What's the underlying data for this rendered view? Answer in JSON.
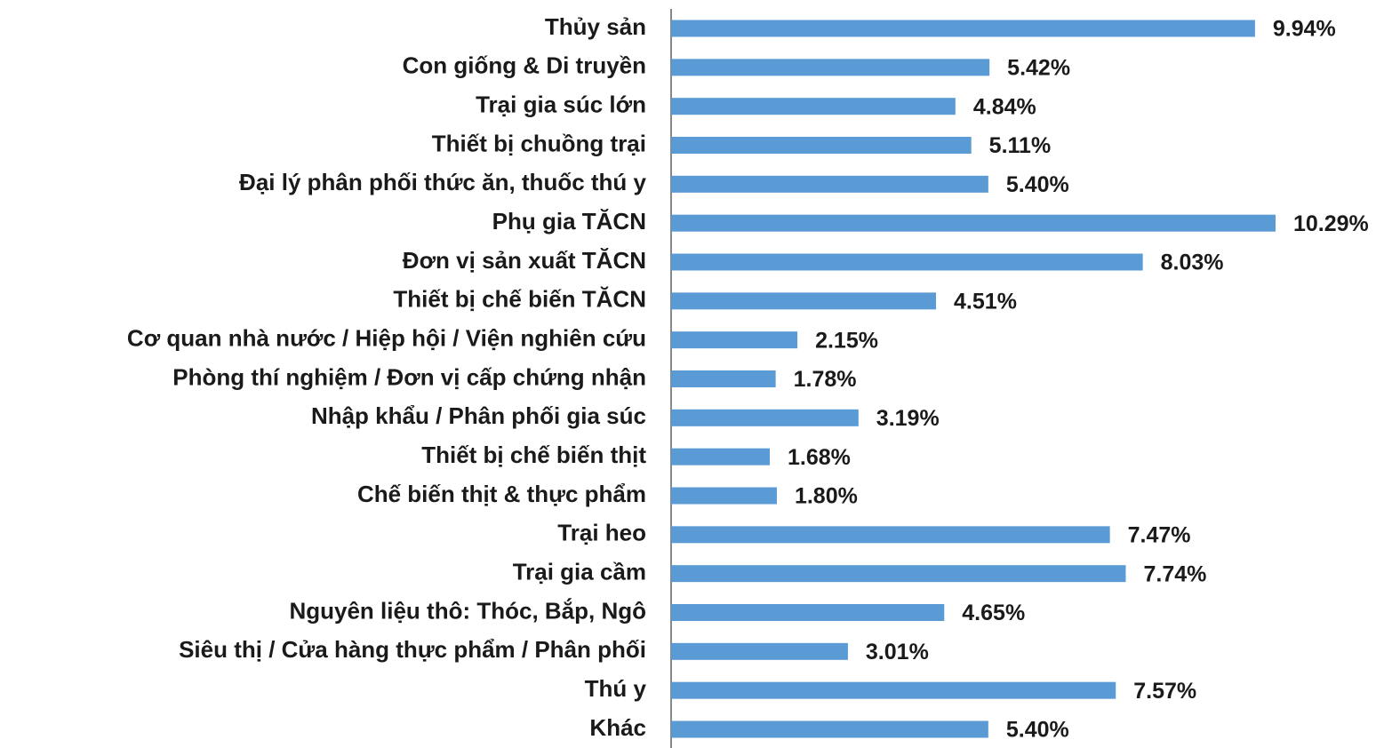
{
  "chart_data": {
    "type": "bar",
    "orientation": "horizontal",
    "color": "#5b9bd5",
    "categories": [
      "Thủy sản",
      "Con giống & Di truyền",
      "Trại gia súc lớn",
      "Thiết bị chuồng trại",
      "Đại lý phân phối thức ăn, thuốc thú y",
      "Phụ gia TĂCN",
      "Đơn vị sản xuất TĂCN",
      "Thiết bị chế biến TĂCN",
      "Cơ quan nhà nước / Hiệp hội / Viện nghiên cứu",
      "Phòng thí nghiệm / Đơn vị cấp chứng nhận",
      "Nhập khẩu / Phân phối gia súc",
      "Thiết bị chế biến thịt",
      "Chế biến thịt & thực phẩm",
      "Trại heo",
      "Trại gia cầm",
      "Nguyên liệu thô: Thóc, Bắp, Ngô",
      "Siêu thị / Cửa hàng thực phẩm / Phân phối",
      "Thú y",
      "Khác"
    ],
    "values": [
      9.94,
      5.42,
      4.84,
      5.11,
      5.4,
      10.29,
      8.03,
      4.51,
      2.15,
      1.78,
      3.19,
      1.68,
      1.8,
      7.47,
      7.74,
      4.65,
      3.01,
      7.57,
      5.4
    ],
    "value_labels": [
      "9.94%",
      "5.42%",
      "4.84%",
      "5.11%",
      "5.40%",
      "10.29%",
      "8.03%",
      "4.51%",
      "2.15%",
      "1.78%",
      "3.19%",
      "1.68%",
      "1.80%",
      "7.47%",
      "7.74%",
      "4.65%",
      "3.01%",
      "7.57%",
      "5.40%"
    ]
  }
}
